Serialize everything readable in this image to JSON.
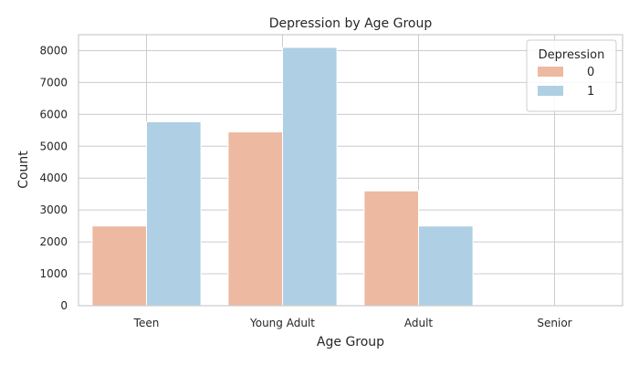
{
  "chart_data": {
    "type": "bar",
    "title": "Depression by Age Group",
    "xlabel": "Age Group",
    "ylabel": "Count",
    "categories": [
      "Teen",
      "Young Adult",
      "Adult",
      "Senior"
    ],
    "series": [
      {
        "name": "0",
        "color": "#EDB9A0",
        "values": [
          2500,
          5450,
          3600,
          0
        ]
      },
      {
        "name": "1",
        "color": "#AFD0E4",
        "values": [
          5770,
          8100,
          2500,
          0
        ]
      }
    ],
    "ylim": [
      0,
      8500
    ],
    "yticks": [
      0,
      1000,
      2000,
      3000,
      4000,
      5000,
      6000,
      7000,
      8000
    ],
    "grid": true,
    "legend": {
      "title": "Depression",
      "placement": "top-right"
    }
  }
}
